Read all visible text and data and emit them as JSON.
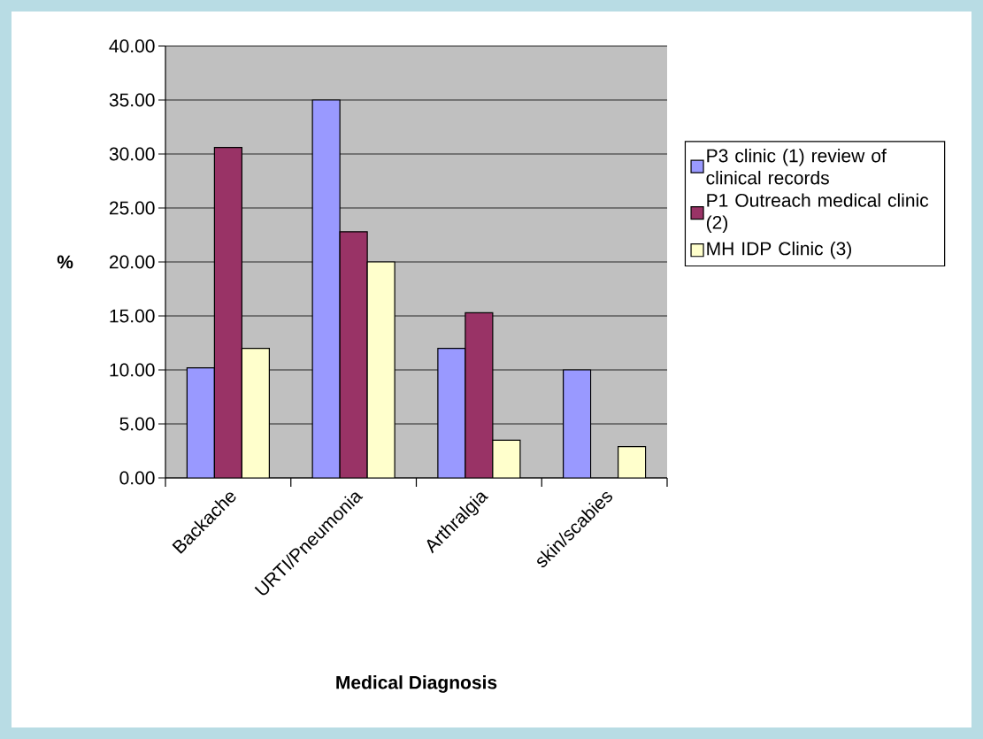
{
  "chart_data": {
    "type": "bar",
    "xlabel": "Medical Diagnosis",
    "ylabel": "%",
    "categories": [
      "Backache",
      "URTI/Pneumonia",
      "Arthralgia",
      "skin/scabies"
    ],
    "series": [
      {
        "name": "P3 clinic (1) review of clinical records",
        "color": "#9999ff",
        "values": [
          10.2,
          35.0,
          12.0,
          10.0
        ]
      },
      {
        "name": "P1 Outreach medical clinic (2)",
        "color": "#993366",
        "values": [
          30.6,
          22.8,
          15.3,
          null
        ]
      },
      {
        "name": "MH IDP Clinic (3)",
        "color": "#ffffcc",
        "values": [
          12.0,
          20.0,
          3.5,
          2.9
        ]
      }
    ],
    "ylim": [
      0,
      40
    ],
    "yticks": [
      {
        "value": 0,
        "label": "0.00"
      },
      {
        "value": 5,
        "label": "5.00"
      },
      {
        "value": 10,
        "label": "10.00"
      },
      {
        "value": 15,
        "label": "15.00"
      },
      {
        "value": 20,
        "label": "20.00"
      },
      {
        "value": 25,
        "label": "25.00"
      },
      {
        "value": 30,
        "label": "30.00"
      },
      {
        "value": 35,
        "label": "35.00"
      },
      {
        "value": 40,
        "label": "40.00"
      }
    ],
    "grid": "y",
    "legend": "right"
  }
}
